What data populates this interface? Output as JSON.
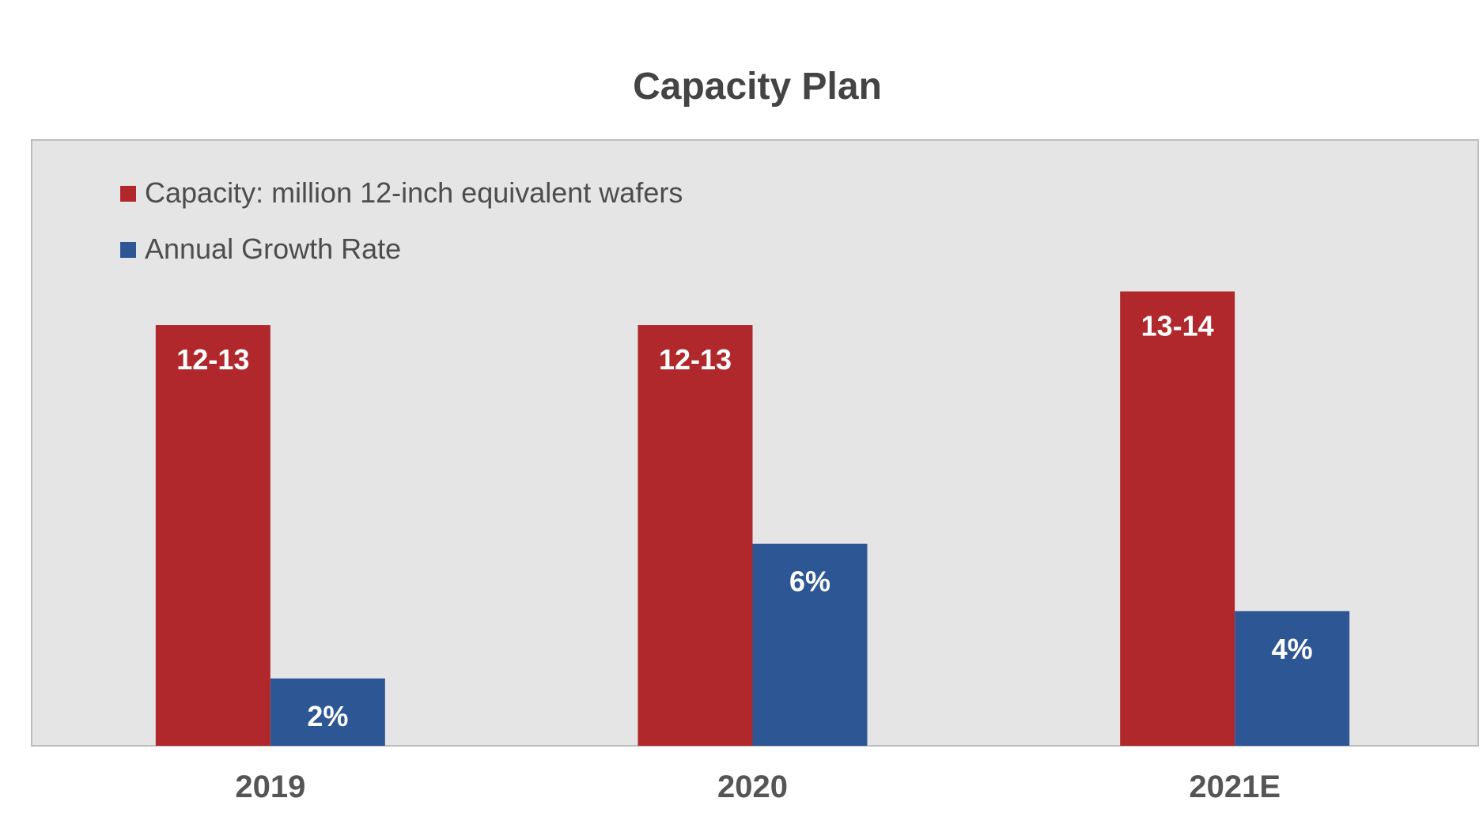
{
  "chart_data": {
    "type": "bar",
    "title": "Capacity Plan",
    "categories": [
      "2019",
      "2020",
      "2021E"
    ],
    "series": [
      {
        "name": "Capacity: million 12-inch equivalent wafers",
        "values": [
          12.5,
          12.5,
          13.5
        ],
        "labels": [
          "12-13",
          "12-13",
          "13-14"
        ],
        "color": "#B0282B"
      },
      {
        "name": "Annual Growth Rate",
        "values": [
          2,
          6,
          4
        ],
        "labels": [
          "2%",
          "6%",
          "4%"
        ],
        "color": "#2D5694"
      }
    ],
    "ylim": [
      0,
      18
    ],
    "grid": false,
    "legend": "top-left",
    "background": "#E5E5E5"
  }
}
